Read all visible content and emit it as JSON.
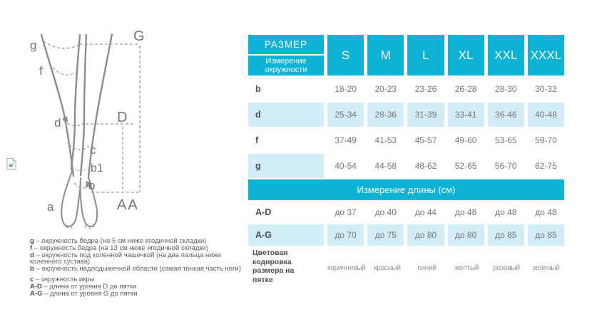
{
  "colors": {
    "teal": "#0db2d4",
    "light_blue": "#d3edf7",
    "row_text": "#76777a",
    "label_text": "#4d4f52",
    "legend_text": "#5c5e60",
    "color_word": "#8f9194",
    "diagram_line": "#8a8c8f",
    "diagram_dash": "#9a9da0",
    "diagram_label": "#717477"
  },
  "diagram": {
    "labels": {
      "g": "g",
      "f": "f",
      "d": "d",
      "c": "c",
      "b1": "b1",
      "b": "b",
      "a": "a",
      "G": "G",
      "D": "D",
      "AA": "AA"
    }
  },
  "legend": {
    "items": [
      {
        "key": "g",
        "text": "– окружность бедра (на 5 см ниже ягодичной складки)",
        "gap_before": false
      },
      {
        "key": "f",
        "text": "– окружность бедра (на 13 см ниже ягодичной складки)",
        "gap_before": false
      },
      {
        "key": "d",
        "text": "– окружность под коленной чашечкой (на два пальца ниже коленного сустава)",
        "gap_before": false
      },
      {
        "key": "b",
        "text": "– окружность надлодыжечной области (самая тонкая часть ноги)",
        "gap_before": false
      },
      {
        "key": "c",
        "text": "– окружность икры",
        "gap_before": true
      },
      {
        "key": "A-D",
        "text": "– длина от уровня D до пятки",
        "gap_before": false
      },
      {
        "key": "A-G",
        "text": "– длина от уровня G до пятки",
        "gap_before": false
      }
    ]
  },
  "table": {
    "header": {
      "size_label": "РАЗМЕР",
      "circumference_label": "Измерение окружности",
      "sizes": [
        "S",
        "M",
        "L",
        "XL",
        "XXL",
        "XXXL"
      ]
    },
    "circumference_rows": [
      {
        "label": "b",
        "values": [
          "18-20",
          "20-23",
          "23-26",
          "26-28",
          "28-30",
          "30-32"
        ],
        "row_shaded": false,
        "label_shaded": false
      },
      {
        "label": "d",
        "values": [
          "25-34",
          "28-36",
          "31-39",
          "33-41",
          "36-46",
          "40-48"
        ],
        "row_shaded": true,
        "label_shaded": true
      },
      {
        "label": "f",
        "values": [
          "37-49",
          "41-53",
          "45-57",
          "49-60",
          "53-65",
          "59-70"
        ],
        "row_shaded": false,
        "label_shaded": false
      },
      {
        "label": "g",
        "values": [
          "40-54",
          "44-58",
          "48-62",
          "52-65",
          "56-70",
          "62-75"
        ],
        "row_shaded": false,
        "label_shaded": true
      }
    ],
    "length_banner": "Измерение длины (см)",
    "length_rows": [
      {
        "label": "A-D",
        "values": [
          "до 37",
          "до 40",
          "до 44",
          "до 48",
          "до 48",
          "до 48"
        ],
        "row_shaded": false,
        "label_shaded": false
      },
      {
        "label": "A-G",
        "values": [
          "до 70",
          "до 75",
          "до 80",
          "до 80",
          "до 85",
          "до 85"
        ],
        "row_shaded": true,
        "label_shaded": true
      }
    ],
    "color_row": {
      "label": "Цветовая кодировка размера на пятке",
      "values": [
        "коричневый",
        "красный",
        "синий",
        "желтый",
        "розовый",
        "зеленый"
      ]
    }
  }
}
